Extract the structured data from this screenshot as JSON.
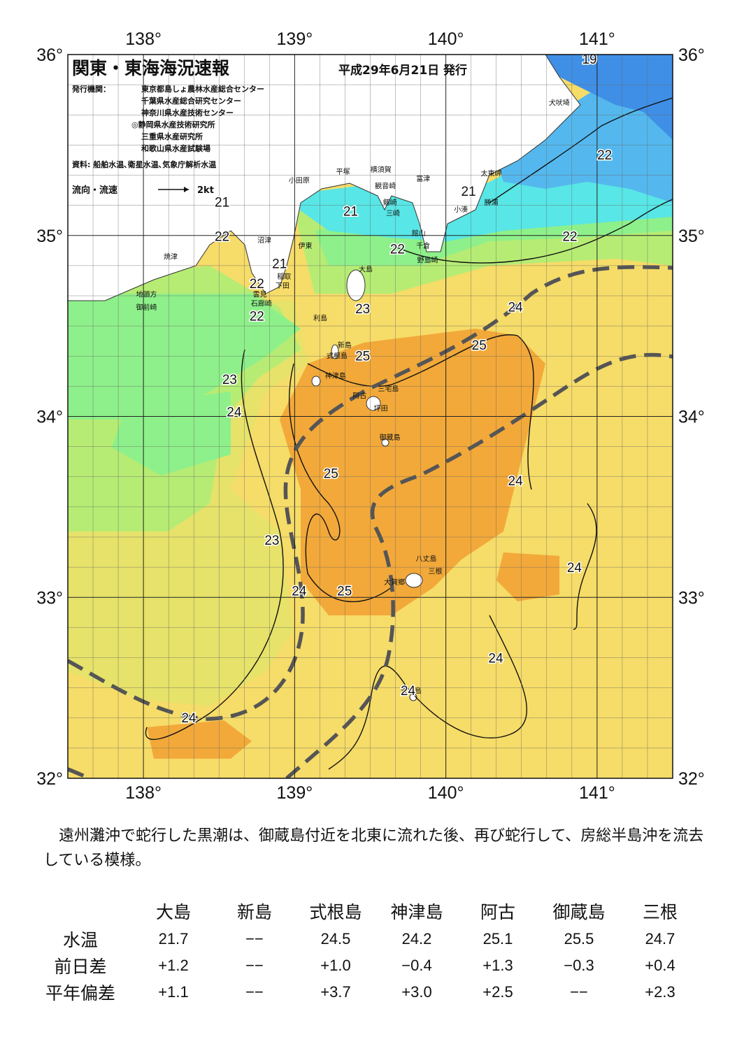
{
  "title": "関東・東海海況速報",
  "issue_date": "平成29年6月21日 発行",
  "publisher_label": "発行機関：",
  "publishers": [
    "東京都島しょ農林水産総合センター",
    "千葉県水産総合研究センター",
    "神奈川県水産技術センター",
    "◎静岡県水産技術研究所",
    "三重県水産研究所",
    "和歌山県水産試験場"
  ],
  "sources": "資料: 船舶水温､衛星水温､気象庁解析水温",
  "current_legend": {
    "label": "流向・流速",
    "scale": "2kt"
  },
  "axes": {
    "lon_labels": [
      "138°",
      "139°",
      "140°",
      "141°"
    ],
    "lat_labels": [
      "36°",
      "35°",
      "34°",
      "33°",
      "32°"
    ],
    "lon_range": [
      137.5,
      141.5
    ],
    "lat_range": [
      32.0,
      36.0
    ]
  },
  "colors": {
    "ocean_deep_blue": "#3f8fe6",
    "ocean_blue": "#54b8ee",
    "ocean_cyan": "#58e6e6",
    "ocean_mint": "#8ef08a",
    "ocean_green": "#b6ec74",
    "ocean_yellowgreen": "#e6e26a",
    "ocean_yellow": "#f6dc68",
    "ocean_orange": "#f2a93a",
    "ocean_light_orange": "#f0c758",
    "land": "#ffffff",
    "kuroshio_axis": "#555555"
  },
  "isotherm_labels": [
    {
      "text": "19",
      "lon": 140.95,
      "lat": 35.95
    },
    {
      "text": "22",
      "lon": 141.05,
      "lat": 35.42
    },
    {
      "text": "21",
      "lon": 140.15,
      "lat": 35.22
    },
    {
      "text": "22",
      "lon": 140.82,
      "lat": 34.97
    },
    {
      "text": "21",
      "lon": 138.52,
      "lat": 35.16
    },
    {
      "text": "22",
      "lon": 138.52,
      "lat": 34.97
    },
    {
      "text": "21",
      "lon": 139.37,
      "lat": 35.11
    },
    {
      "text": "22",
      "lon": 139.68,
      "lat": 34.9
    },
    {
      "text": "21",
      "lon": 138.9,
      "lat": 34.82
    },
    {
      "text": "22",
      "lon": 138.75,
      "lat": 34.71
    },
    {
      "text": "22",
      "lon": 138.75,
      "lat": 34.53
    },
    {
      "text": "23",
      "lon": 139.45,
      "lat": 34.57
    },
    {
      "text": "24",
      "lon": 140.46,
      "lat": 34.58
    },
    {
      "text": "25",
      "lon": 140.22,
      "lat": 34.37
    },
    {
      "text": "25",
      "lon": 139.45,
      "lat": 34.31
    },
    {
      "text": "23",
      "lon": 138.57,
      "lat": 34.18
    },
    {
      "text": "24",
      "lon": 138.6,
      "lat": 34.0
    },
    {
      "text": "25",
      "lon": 139.24,
      "lat": 33.66
    },
    {
      "text": "24",
      "lon": 140.46,
      "lat": 33.62
    },
    {
      "text": "23",
      "lon": 138.85,
      "lat": 33.29
    },
    {
      "text": "24",
      "lon": 140.85,
      "lat": 33.14
    },
    {
      "text": "24",
      "lon": 139.03,
      "lat": 33.01
    },
    {
      "text": "25",
      "lon": 139.33,
      "lat": 33.01
    },
    {
      "text": "24",
      "lon": 140.33,
      "lat": 32.64
    },
    {
      "text": "24",
      "lon": 139.75,
      "lat": 32.46
    },
    {
      "text": "24",
      "lon": 138.3,
      "lat": 32.31
    }
  ],
  "place_labels": [
    {
      "text": "犬吠埼",
      "lon": 140.75,
      "lat": 35.72
    },
    {
      "text": "太東岬",
      "lon": 140.3,
      "lat": 35.33
    },
    {
      "text": "勝浦",
      "lon": 140.3,
      "lat": 35.17
    },
    {
      "text": "小湊",
      "lon": 140.1,
      "lat": 35.13
    },
    {
      "text": "富津",
      "lon": 139.85,
      "lat": 35.3
    },
    {
      "text": "横須賀",
      "lon": 139.57,
      "lat": 35.35
    },
    {
      "text": "観音崎",
      "lon": 139.6,
      "lat": 35.26
    },
    {
      "text": "平塚",
      "lon": 139.32,
      "lat": 35.34
    },
    {
      "text": "剱崎",
      "lon": 139.63,
      "lat": 35.17
    },
    {
      "text": "小田原",
      "lon": 139.03,
      "lat": 35.29
    },
    {
      "text": "三崎",
      "lon": 139.65,
      "lat": 35.11
    },
    {
      "text": "館山",
      "lon": 139.82,
      "lat": 35.0
    },
    {
      "text": "千倉",
      "lon": 139.85,
      "lat": 34.93
    },
    {
      "text": "野島崎",
      "lon": 139.88,
      "lat": 34.85
    },
    {
      "text": "沼津",
      "lon": 138.8,
      "lat": 34.96
    },
    {
      "text": "伊東",
      "lon": 139.07,
      "lat": 34.93
    },
    {
      "text": "焼津",
      "lon": 138.18,
      "lat": 34.87
    },
    {
      "text": "稲取",
      "lon": 138.93,
      "lat": 34.76
    },
    {
      "text": "下田",
      "lon": 138.92,
      "lat": 34.71
    },
    {
      "text": "雲見",
      "lon": 138.77,
      "lat": 34.66
    },
    {
      "text": "石廊崎",
      "lon": 138.78,
      "lat": 34.61
    },
    {
      "text": "地頭方",
      "lon": 138.02,
      "lat": 34.66
    },
    {
      "text": "御前崎",
      "lon": 138.02,
      "lat": 34.59
    },
    {
      "text": "大島",
      "lon": 139.47,
      "lat": 34.8
    },
    {
      "text": "利島",
      "lon": 139.17,
      "lat": 34.53
    },
    {
      "text": "新島",
      "lon": 139.33,
      "lat": 34.38
    },
    {
      "text": "式根島",
      "lon": 139.28,
      "lat": 34.32
    },
    {
      "text": "神津島",
      "lon": 139.27,
      "lat": 34.21
    },
    {
      "text": "三宅島",
      "lon": 139.62,
      "lat": 34.14
    },
    {
      "text": "阿古",
      "lon": 139.43,
      "lat": 34.1
    },
    {
      "text": "坪田",
      "lon": 139.57,
      "lat": 34.03
    },
    {
      "text": "御蔵島",
      "lon": 139.63,
      "lat": 33.87
    },
    {
      "text": "八丈島",
      "lon": 139.87,
      "lat": 33.2
    },
    {
      "text": "三根",
      "lon": 139.93,
      "lat": 33.13
    },
    {
      "text": "大賀郷",
      "lon": 139.66,
      "lat": 33.07
    },
    {
      "text": "青ヶ島",
      "lon": 139.77,
      "lat": 32.47
    }
  ],
  "summary_text": "遠州灘沖で蛇行した黒潮は、御蔵島付近を北東に流れた後、再び蛇行して、房総半島沖を流去している模様。",
  "station_table": {
    "stations": [
      "大島",
      "新島",
      "式根島",
      "神津島",
      "阿古",
      "御蔵島",
      "三根"
    ],
    "rows": [
      {
        "label": "水温",
        "values": [
          "21.7",
          "−−",
          "24.5",
          "24.2",
          "25.1",
          "25.5",
          "24.7"
        ]
      },
      {
        "label": "前日差",
        "values": [
          "+1.2",
          "−−",
          "+1.0",
          "−0.4",
          "+1.3",
          "−0.3",
          "+0.4"
        ]
      },
      {
        "label": "平年偏差",
        "values": [
          "+1.1",
          "−−",
          "+3.7",
          "+3.0",
          "+2.5",
          "−−",
          "+2.3"
        ]
      }
    ]
  }
}
